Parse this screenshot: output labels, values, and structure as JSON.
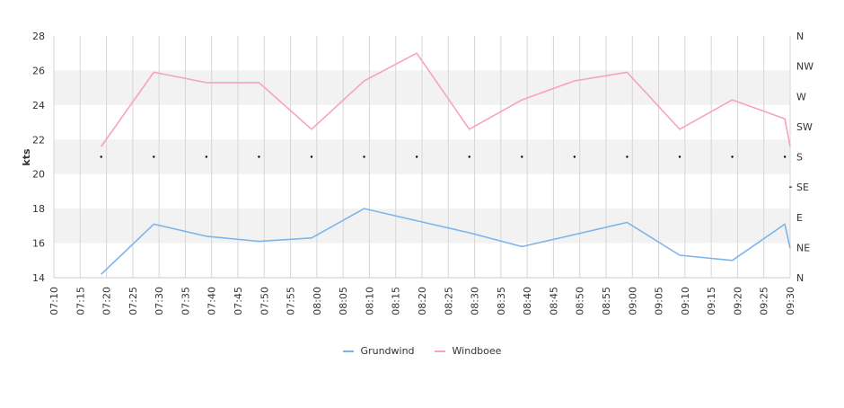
{
  "chart_data": {
    "type": "line",
    "title": "",
    "ylabel": "kts",
    "ylim": [
      14,
      28
    ],
    "yticks": [
      14,
      16,
      18,
      20,
      22,
      24,
      26,
      28
    ],
    "grid": true,
    "legend_position": "bottom",
    "x_ticks": [
      "07:10",
      "07:15",
      "07:20",
      "07:25",
      "07:30",
      "07:35",
      "07:40",
      "07:45",
      "07:50",
      "07:55",
      "08:00",
      "08:05",
      "08:10",
      "08:15",
      "08:20",
      "08:25",
      "08:30",
      "08:35",
      "08:40",
      "08:45",
      "08:50",
      "08:55",
      "09:00",
      "09:05",
      "09:10",
      "09:15",
      "09:20",
      "09:25",
      "09:30"
    ],
    "x": [
      "07:19",
      "07:29",
      "07:39",
      "07:49",
      "07:59",
      "08:09",
      "08:19",
      "08:29",
      "08:39",
      "08:49",
      "08:59",
      "09:09",
      "09:19",
      "09:29",
      "09:30"
    ],
    "series": [
      {
        "name": "Grundwind",
        "color": "#7cb5ec",
        "values": [
          14.2,
          17.1,
          16.4,
          16.1,
          16.3,
          18.0,
          17.3,
          16.6,
          15.8,
          16.5,
          17.2,
          15.3,
          15.0,
          17.1,
          15.7
        ]
      },
      {
        "name": "Windboee",
        "color": "#f7a1c8",
        "values": [
          21.6,
          25.9,
          25.3,
          25.3,
          22.6,
          25.4,
          27.0,
          22.6,
          24.3,
          25.4,
          25.9,
          22.6,
          24.3,
          23.2,
          21.6
        ]
      }
    ],
    "direction_axis": {
      "labels": [
        "N",
        "NE",
        "E",
        "SE",
        "S",
        "SW",
        "W",
        "NW",
        "N"
      ]
    },
    "direction_points": {
      "x": [
        "07:19",
        "07:29",
        "07:39",
        "07:49",
        "07:59",
        "08:09",
        "08:19",
        "08:29",
        "08:39",
        "08:49",
        "08:59",
        "09:09",
        "09:19",
        "09:29"
      ],
      "values": [
        "S",
        "S",
        "S",
        "S",
        "S",
        "S",
        "S",
        "S",
        "S",
        "S",
        "S",
        "S",
        "S",
        "S"
      ]
    },
    "colors": {
      "band": "#f2f2f2",
      "grid": "#d6d6d6",
      "axis": "#cccccc",
      "dots": "#000000"
    }
  }
}
